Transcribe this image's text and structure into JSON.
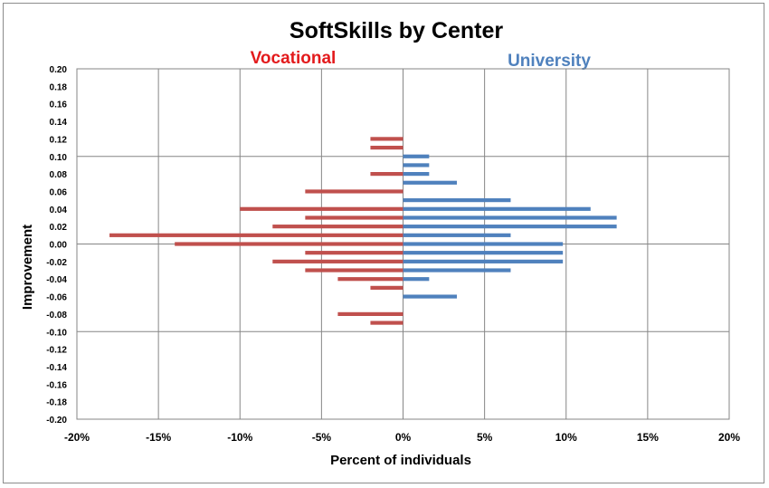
{
  "chart_data": {
    "type": "bar",
    "orientation": "horizontal",
    "title": "SoftSkills by Center",
    "xlabel": "Percent of individuals",
    "ylabel": "Improvement",
    "xlim": [
      -20,
      20
    ],
    "ylim": [
      -0.2,
      0.2
    ],
    "x_ticks": [
      -20,
      -15,
      -10,
      -5,
      0,
      5,
      10,
      15,
      20
    ],
    "x_tick_labels": [
      "-20%",
      "-15%",
      "-10%",
      "-5%",
      "0%",
      "5%",
      "10%",
      "15%",
      "20%"
    ],
    "y_ticks": [
      0.2,
      0.18,
      0.16,
      0.14,
      0.12,
      0.1,
      0.08,
      0.06,
      0.04,
      0.02,
      0.0,
      -0.02,
      -0.04,
      -0.06,
      -0.08,
      -0.1,
      -0.12,
      -0.14,
      -0.16,
      -0.18,
      -0.2
    ],
    "y_tick_labels": [
      "0.20",
      "0.18",
      "0.16",
      "0.14",
      "0.12",
      "0.10",
      "0.08",
      "0.06",
      "0.04",
      "0.02",
      "0.00",
      "-0.02",
      "-0.04",
      "-0.06",
      "-0.08",
      "-0.10",
      "-0.12",
      "-0.14",
      "-0.16",
      "-0.18",
      "-0.20"
    ],
    "grid": true,
    "series": [
      {
        "name": "Vocational",
        "color": "#c0504d",
        "label_color": "#e31a1c",
        "points": [
          {
            "y": 0.12,
            "x": -2
          },
          {
            "y": 0.11,
            "x": -2
          },
          {
            "y": 0.08,
            "x": -2
          },
          {
            "y": 0.06,
            "x": -6
          },
          {
            "y": 0.04,
            "x": -10
          },
          {
            "y": 0.03,
            "x": -6
          },
          {
            "y": 0.02,
            "x": -8
          },
          {
            "y": 0.01,
            "x": -18
          },
          {
            "y": 0.0,
            "x": -14
          },
          {
            "y": -0.01,
            "x": -6
          },
          {
            "y": -0.02,
            "x": -8
          },
          {
            "y": -0.03,
            "x": -6
          },
          {
            "y": -0.04,
            "x": -4
          },
          {
            "y": -0.05,
            "x": -2
          },
          {
            "y": -0.08,
            "x": -4
          },
          {
            "y": -0.09,
            "x": -2
          }
        ]
      },
      {
        "name": "University",
        "color": "#4f81bd",
        "label_color": "#4f81bd",
        "points": [
          {
            "y": 0.1,
            "x": 1.6
          },
          {
            "y": 0.09,
            "x": 1.6
          },
          {
            "y": 0.08,
            "x": 1.6
          },
          {
            "y": 0.07,
            "x": 3.3
          },
          {
            "y": 0.05,
            "x": 6.6
          },
          {
            "y": 0.04,
            "x": 11.5
          },
          {
            "y": 0.03,
            "x": 13.1
          },
          {
            "y": 0.02,
            "x": 13.1
          },
          {
            "y": 0.01,
            "x": 6.6
          },
          {
            "y": 0.0,
            "x": 9.8
          },
          {
            "y": -0.01,
            "x": 9.8
          },
          {
            "y": -0.02,
            "x": 9.8
          },
          {
            "y": -0.03,
            "x": 6.6
          },
          {
            "y": -0.04,
            "x": 1.6
          },
          {
            "y": -0.06,
            "x": 3.3
          }
        ]
      }
    ]
  }
}
